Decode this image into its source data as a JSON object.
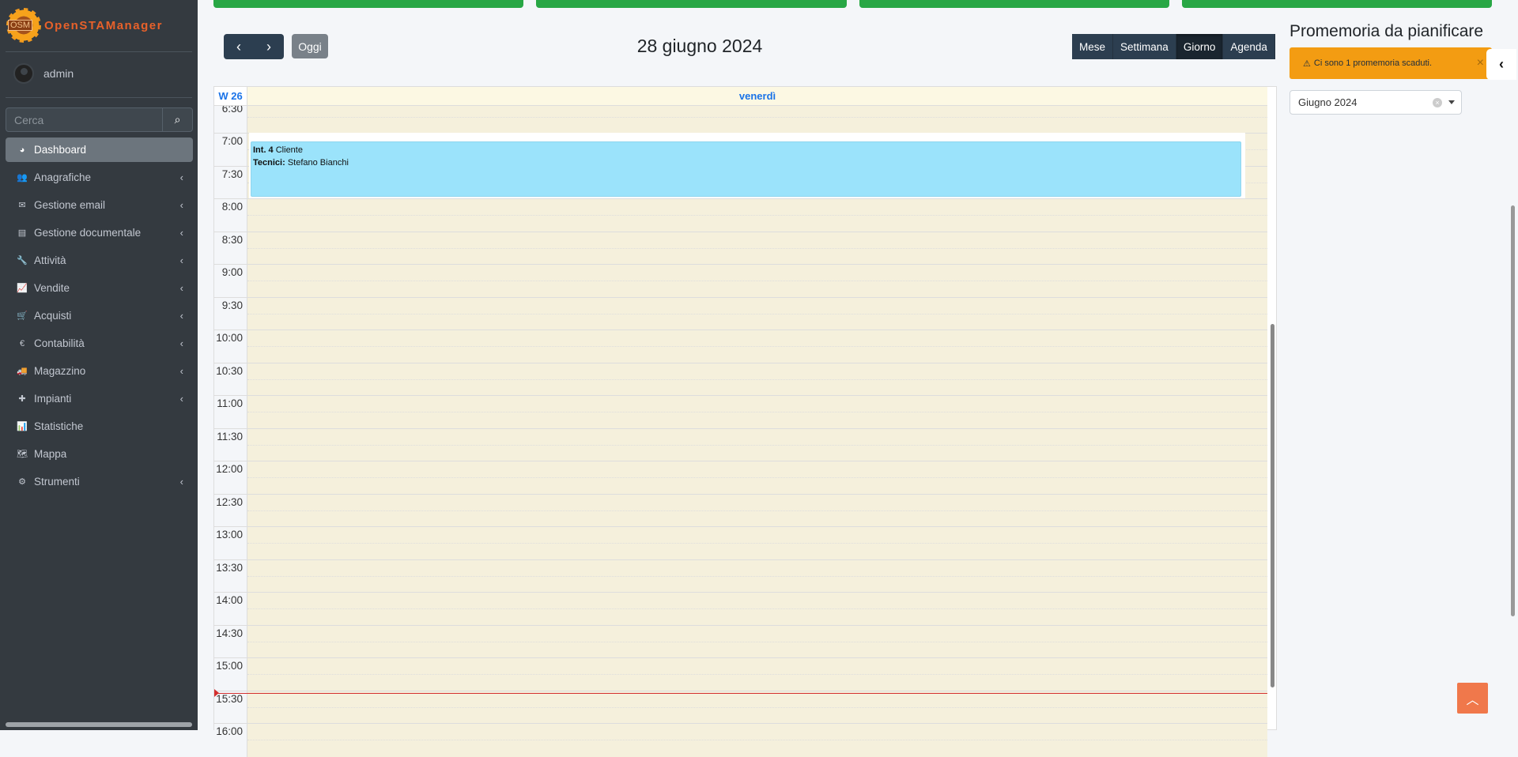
{
  "app": {
    "logo_badge": "OSM",
    "logo_text": "OpenSTAManager",
    "user": "admin"
  },
  "sidebar": {
    "search_placeholder": "Cerca",
    "items": [
      {
        "label": "Dashboard",
        "icon": "dashboard-icon",
        "glyph": "◕",
        "active": true,
        "submenu": false
      },
      {
        "label": "Anagrafiche",
        "icon": "users-icon",
        "glyph": "👥",
        "submenu": true
      },
      {
        "label": "Gestione email",
        "icon": "envelope-icon",
        "glyph": "✉",
        "submenu": true
      },
      {
        "label": "Gestione documentale",
        "icon": "file-icon",
        "glyph": "▤",
        "submenu": true
      },
      {
        "label": "Attività",
        "icon": "wrench-icon",
        "glyph": "🔧",
        "submenu": true
      },
      {
        "label": "Vendite",
        "icon": "line-chart-icon",
        "glyph": "📈",
        "submenu": true
      },
      {
        "label": "Acquisti",
        "icon": "cart-icon",
        "glyph": "🛒",
        "submenu": true
      },
      {
        "label": "Contabilità",
        "icon": "euro-icon",
        "glyph": "€",
        "submenu": true
      },
      {
        "label": "Magazzino",
        "icon": "truck-icon",
        "glyph": "🚚",
        "submenu": true
      },
      {
        "label": "Impianti",
        "icon": "puzzle-icon",
        "glyph": "✚",
        "submenu": true
      },
      {
        "label": "Statistiche",
        "icon": "bar-chart-icon",
        "glyph": "📊",
        "submenu": false
      },
      {
        "label": "Mappa",
        "icon": "map-icon",
        "glyph": "🗺",
        "submenu": false
      },
      {
        "label": "Strumenti",
        "icon": "cog-icon",
        "glyph": "⚙",
        "submenu": true
      }
    ]
  },
  "calendar": {
    "today_label": "Oggi",
    "title": "28 giugno 2024",
    "views": [
      "Mese",
      "Settimana",
      "Giorno",
      "Agenda"
    ],
    "active_view": "Giorno",
    "week_label": "W 26",
    "day_label": "venerdì",
    "times": [
      "6:30",
      "7:00",
      "7:30",
      "8:00",
      "8:30",
      "9:00",
      "9:30",
      "10:00",
      "10:30",
      "11:00",
      "11:30",
      "12:00",
      "12:30",
      "13:00",
      "13:30",
      "14:00",
      "14:30",
      "15:00",
      "15:30",
      "16:00"
    ],
    "event": {
      "title_bold": "Int. 4",
      "title": "Cliente",
      "techs_label": "Tecnici:",
      "techs": "Stefano Bianchi",
      "color": "#9be3fb"
    }
  },
  "reminders": {
    "title": "Promemoria da pianificare",
    "alert": "Ci sono 1 promemoria scaduti.",
    "month_select": "Giugno 2024"
  }
}
